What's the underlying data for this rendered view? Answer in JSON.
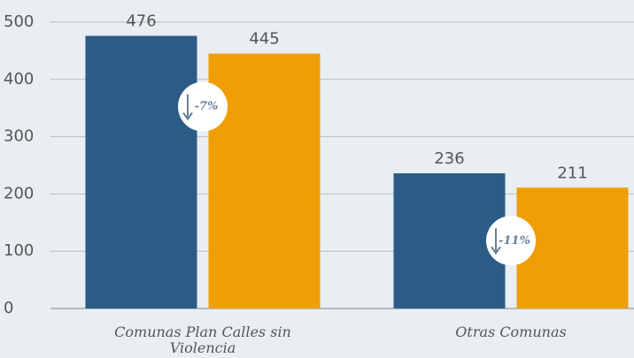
{
  "chart_data": {
    "type": "bar",
    "categories": [
      "Comunas Plan Calles sin Violencia",
      "Otras Comunas"
    ],
    "series": [
      {
        "color": "#2b5c86",
        "values": [
          476,
          236
        ]
      },
      {
        "color": "#f09e06",
        "values": [
          445,
          211
        ]
      }
    ],
    "ylim": [
      0,
      500
    ],
    "yticks": [
      0,
      100,
      200,
      300,
      400,
      500
    ],
    "grid": true,
    "annotations": [
      "-7%",
      "-11%"
    ]
  }
}
